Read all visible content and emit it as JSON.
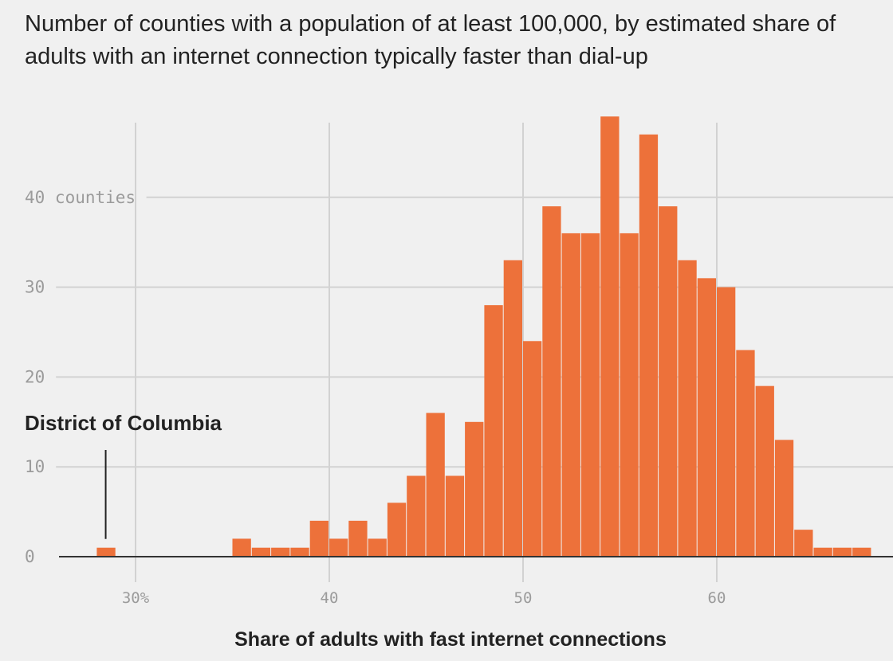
{
  "chart_data": {
    "type": "bar",
    "title": "Number of counties with a population of at least 100,000, by estimated share of adults with an internet connection typically faster than dial-up",
    "xlabel": "Share of adults with fast internet connections",
    "ylabel": "",
    "xlim": [
      26,
      68.5
    ],
    "ylim": [
      0,
      50
    ],
    "bin_width": 1,
    "grid": true,
    "bar_color": "#ed713a",
    "x_ticks": [
      {
        "value": 30,
        "label": "30%"
      },
      {
        "value": 40,
        "label": "40"
      },
      {
        "value": 50,
        "label": "50"
      },
      {
        "value": 60,
        "label": "60"
      }
    ],
    "y_ticks": [
      {
        "value": 0,
        "label": "0"
      },
      {
        "value": 10,
        "label": "10"
      },
      {
        "value": 20,
        "label": "20"
      },
      {
        "value": 30,
        "label": "30"
      },
      {
        "value": 40,
        "label": "40 counties"
      }
    ],
    "bins": [
      {
        "x": 28,
        "count": 1
      },
      {
        "x": 35,
        "count": 2
      },
      {
        "x": 36,
        "count": 1
      },
      {
        "x": 37,
        "count": 1
      },
      {
        "x": 38,
        "count": 1
      },
      {
        "x": 39,
        "count": 4
      },
      {
        "x": 40,
        "count": 2
      },
      {
        "x": 41,
        "count": 4
      },
      {
        "x": 42,
        "count": 2
      },
      {
        "x": 43,
        "count": 6
      },
      {
        "x": 44,
        "count": 9
      },
      {
        "x": 45,
        "count": 16
      },
      {
        "x": 46,
        "count": 9
      },
      {
        "x": 47,
        "count": 15
      },
      {
        "x": 48,
        "count": 28
      },
      {
        "x": 49,
        "count": 33
      },
      {
        "x": 50,
        "count": 24
      },
      {
        "x": 51,
        "count": 39
      },
      {
        "x": 52,
        "count": 36
      },
      {
        "x": 53,
        "count": 36
      },
      {
        "x": 54,
        "count": 49
      },
      {
        "x": 55,
        "count": 36
      },
      {
        "x": 56,
        "count": 47
      },
      {
        "x": 57,
        "count": 39
      },
      {
        "x": 58,
        "count": 33
      },
      {
        "x": 59,
        "count": 31
      },
      {
        "x": 60,
        "count": 30
      },
      {
        "x": 61,
        "count": 23
      },
      {
        "x": 62,
        "count": 19
      },
      {
        "x": 63,
        "count": 13
      },
      {
        "x": 64,
        "count": 3
      },
      {
        "x": 65,
        "count": 1
      },
      {
        "x": 66,
        "count": 1
      },
      {
        "x": 67,
        "count": 1
      }
    ],
    "annotations": [
      {
        "label": "District of Columbia",
        "x": 28.5,
        "y": 1
      }
    ]
  }
}
